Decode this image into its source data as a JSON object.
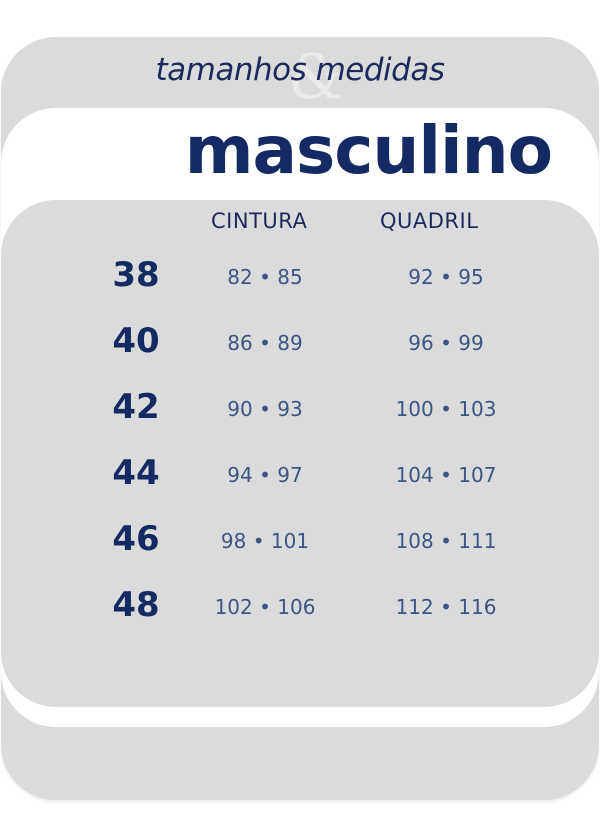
{
  "header": {
    "subtitle_left": "tamanhos",
    "subtitle_ampersand": "&",
    "subtitle_right": "medidas",
    "title": "masculino"
  },
  "colors": {
    "navy": "#142a63",
    "value_blue": "#3b5584",
    "panel_gray": "#dcdbdc"
  },
  "table": {
    "columns": [
      "CINTURA",
      "QUADRIL"
    ],
    "rows": [
      {
        "size": "38",
        "cintura": "82 • 85",
        "quadril": "92 • 95"
      },
      {
        "size": "40",
        "cintura": "86 • 89",
        "quadril": "96 • 99"
      },
      {
        "size": "42",
        "cintura": "90 • 93",
        "quadril": "100 • 103"
      },
      {
        "size": "44",
        "cintura": "94 • 97",
        "quadril": "104 • 107"
      },
      {
        "size": "46",
        "cintura": "98 • 101",
        "quadril": "108 • 111"
      },
      {
        "size": "48",
        "cintura": "102 • 106",
        "quadril": "112 • 116"
      }
    ]
  }
}
